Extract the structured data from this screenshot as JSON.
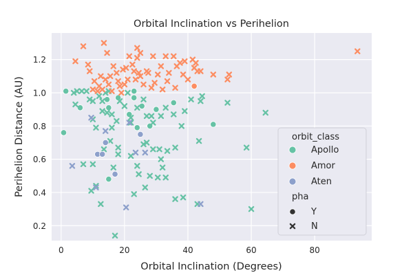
{
  "chart_data": {
    "type": "scatter",
    "title": "Orbital Inclination vs Perihelion",
    "xlabel": "Orbital Inclination (Degrees)",
    "ylabel": "Perihelion Distance (AU)",
    "xlim": [
      -3,
      98
    ],
    "ylim": [
      0.11,
      1.36
    ],
    "xticks": [
      0,
      20,
      40,
      60,
      80
    ],
    "yticks": [
      0.2,
      0.4,
      0.6,
      0.8,
      1.0,
      1.2
    ],
    "grid": true,
    "legend": {
      "placement": "lower-right",
      "hue_title": "orbit_class",
      "hue_entries": [
        "Apollo",
        "Amor",
        "Aten"
      ],
      "style_title": "pha",
      "style_entries": [
        "Y",
        "N"
      ]
    },
    "colors": {
      "Apollo": "#66c2a5",
      "Amor": "#fc8d62",
      "Aten": "#8da0cb",
      "background": "#eaeaf2",
      "grid": "#ffffff"
    },
    "marker_shapes": {
      "Y": "circle",
      "N": "x"
    },
    "series": [
      {
        "name": "Apollo",
        "points": [
          {
            "x": 1.5,
            "y": 1.01,
            "pha": "Y"
          },
          {
            "x": 0.8,
            "y": 0.76,
            "pha": "Y"
          },
          {
            "x": 6,
            "y": 0.91,
            "pha": "Y"
          },
          {
            "x": 14.5,
            "y": 0.96,
            "pha": "Y"
          },
          {
            "x": 15,
            "y": 0.91,
            "pha": "Y"
          },
          {
            "x": 15,
            "y": 0.48,
            "pha": "Y"
          },
          {
            "x": 18,
            "y": 0.97,
            "pha": "Y"
          },
          {
            "x": 21.5,
            "y": 0.87,
            "pha": "Y"
          },
          {
            "x": 23,
            "y": 1.01,
            "pha": "Y"
          },
          {
            "x": 23,
            "y": 0.97,
            "pha": "Y"
          },
          {
            "x": 24,
            "y": 0.79,
            "pha": "Y"
          },
          {
            "x": 25.5,
            "y": 0.92,
            "pha": "Y"
          },
          {
            "x": 28,
            "y": 0.8,
            "pha": "Y"
          },
          {
            "x": 30,
            "y": 0.9,
            "pha": "Y"
          },
          {
            "x": 35.5,
            "y": 0.94,
            "pha": "Y"
          },
          {
            "x": 48,
            "y": 0.81,
            "pha": "Y"
          },
          {
            "x": 4,
            "y": 1.0,
            "pha": "N"
          },
          {
            "x": 5,
            "y": 1.01,
            "pha": "N"
          },
          {
            "x": 4.5,
            "y": 0.93,
            "pha": "N"
          },
          {
            "x": 6.5,
            "y": 1.01,
            "pha": "N"
          },
          {
            "x": 8,
            "y": 1.01,
            "pha": "N"
          },
          {
            "x": 9,
            "y": 0.96,
            "pha": "N"
          },
          {
            "x": 10,
            "y": 0.95,
            "pha": "N"
          },
          {
            "x": 10,
            "y": 0.84,
            "pha": "N"
          },
          {
            "x": 11,
            "y": 0.79,
            "pha": "N"
          },
          {
            "x": 12,
            "y": 0.98,
            "pha": "N"
          },
          {
            "x": 13,
            "y": 0.95,
            "pha": "N"
          },
          {
            "x": 13,
            "y": 0.89,
            "pha": "N"
          },
          {
            "x": 14,
            "y": 1.0,
            "pha": "N"
          },
          {
            "x": 15,
            "y": 1.01,
            "pha": "N"
          },
          {
            "x": 14.5,
            "y": 0.88,
            "pha": "N"
          },
          {
            "x": 16,
            "y": 0.87,
            "pha": "N"
          },
          {
            "x": 16,
            "y": 0.79,
            "pha": "N"
          },
          {
            "x": 17.5,
            "y": 0.83,
            "pha": "N"
          },
          {
            "x": 18.5,
            "y": 0.95,
            "pha": "N"
          },
          {
            "x": 20,
            "y": 0.92,
            "pha": "N"
          },
          {
            "x": 21,
            "y": 1.0,
            "pha": "N"
          },
          {
            "x": 22,
            "y": 0.85,
            "pha": "N"
          },
          {
            "x": 22,
            "y": 0.82,
            "pha": "N"
          },
          {
            "x": 24,
            "y": 0.91,
            "pha": "N"
          },
          {
            "x": 26,
            "y": 0.96,
            "pha": "N"
          },
          {
            "x": 27,
            "y": 0.86,
            "pha": "N"
          },
          {
            "x": 28.5,
            "y": 0.86,
            "pha": "N"
          },
          {
            "x": 29,
            "y": 0.82,
            "pha": "N"
          },
          {
            "x": 31.5,
            "y": 0.86,
            "pha": "N"
          },
          {
            "x": 33,
            "y": 0.91,
            "pha": "N"
          },
          {
            "x": 35.5,
            "y": 0.87,
            "pha": "N"
          },
          {
            "x": 38,
            "y": 0.8,
            "pha": "N"
          },
          {
            "x": 39,
            "y": 0.89,
            "pha": "N"
          },
          {
            "x": 41,
            "y": 0.96,
            "pha": "N"
          },
          {
            "x": 44,
            "y": 0.95,
            "pha": "N"
          },
          {
            "x": 44.5,
            "y": 0.98,
            "pha": "N"
          },
          {
            "x": 52.5,
            "y": 0.94,
            "pha": "N"
          },
          {
            "x": 64.5,
            "y": 0.88,
            "pha": "N"
          },
          {
            "x": 43.5,
            "y": 0.71,
            "pha": "N"
          },
          {
            "x": 7,
            "y": 0.57,
            "pha": "N"
          },
          {
            "x": 10,
            "y": 0.57,
            "pha": "N"
          },
          {
            "x": 9.5,
            "y": 0.41,
            "pha": "N"
          },
          {
            "x": 11,
            "y": 0.44,
            "pha": "N"
          },
          {
            "x": 12.5,
            "y": 0.33,
            "pha": "N"
          },
          {
            "x": 13.5,
            "y": 0.66,
            "pha": "N"
          },
          {
            "x": 15.5,
            "y": 0.71,
            "pha": "N"
          },
          {
            "x": 16.5,
            "y": 0.55,
            "pha": "N"
          },
          {
            "x": 17,
            "y": 0.14,
            "pha": "N"
          },
          {
            "x": 18,
            "y": 0.67,
            "pha": "N"
          },
          {
            "x": 18,
            "y": 0.63,
            "pha": "N"
          },
          {
            "x": 22,
            "y": 0.62,
            "pha": "N"
          },
          {
            "x": 23,
            "y": 0.39,
            "pha": "N"
          },
          {
            "x": 24,
            "y": 0.56,
            "pha": "N"
          },
          {
            "x": 24.5,
            "y": 0.51,
            "pha": "N"
          },
          {
            "x": 26,
            "y": 0.69,
            "pha": "N"
          },
          {
            "x": 27,
            "y": 0.7,
            "pha": "N"
          },
          {
            "x": 26.5,
            "y": 0.43,
            "pha": "N"
          },
          {
            "x": 28,
            "y": 0.5,
            "pha": "N"
          },
          {
            "x": 29,
            "y": 0.66,
            "pha": "N"
          },
          {
            "x": 30.5,
            "y": 0.49,
            "pha": "N"
          },
          {
            "x": 31,
            "y": 0.66,
            "pha": "N"
          },
          {
            "x": 31.5,
            "y": 0.6,
            "pha": "N"
          },
          {
            "x": 32,
            "y": 0.55,
            "pha": "N"
          },
          {
            "x": 33,
            "y": 0.49,
            "pha": "N"
          },
          {
            "x": 33.5,
            "y": 0.65,
            "pha": "N"
          },
          {
            "x": 36,
            "y": 0.67,
            "pha": "N"
          },
          {
            "x": 36,
            "y": 0.36,
            "pha": "N"
          },
          {
            "x": 38.5,
            "y": 0.37,
            "pha": "N"
          },
          {
            "x": 43,
            "y": 0.33,
            "pha": "N"
          },
          {
            "x": 58.5,
            "y": 0.67,
            "pha": "N"
          },
          {
            "x": 60,
            "y": 0.3,
            "pha": "N"
          }
        ]
      },
      {
        "name": "Amor",
        "points": [
          {
            "x": 42,
            "y": 1.04,
            "pha": "Y"
          },
          {
            "x": 4.5,
            "y": 1.19,
            "pha": "N"
          },
          {
            "x": 7,
            "y": 1.28,
            "pha": "N"
          },
          {
            "x": 8.5,
            "y": 1.17,
            "pha": "N"
          },
          {
            "x": 9,
            "y": 1.13,
            "pha": "N"
          },
          {
            "x": 10,
            "y": 1.02,
            "pha": "N"
          },
          {
            "x": 10.5,
            "y": 1.07,
            "pha": "N"
          },
          {
            "x": 11.5,
            "y": 1.01,
            "pha": "N"
          },
          {
            "x": 12,
            "y": 1.04,
            "pha": "N"
          },
          {
            "x": 12.5,
            "y": 1.1,
            "pha": "N"
          },
          {
            "x": 13,
            "y": 1.02,
            "pha": "N"
          },
          {
            "x": 13.5,
            "y": 1.3,
            "pha": "N"
          },
          {
            "x": 14,
            "y": 1.08,
            "pha": "N"
          },
          {
            "x": 14.5,
            "y": 1.24,
            "pha": "N"
          },
          {
            "x": 15,
            "y": 1.05,
            "pha": "N"
          },
          {
            "x": 15.5,
            "y": 1.1,
            "pha": "N"
          },
          {
            "x": 16,
            "y": 1.01,
            "pha": "N"
          },
          {
            "x": 16.5,
            "y": 1.16,
            "pha": "N"
          },
          {
            "x": 17.5,
            "y": 1.12,
            "pha": "N"
          },
          {
            "x": 18,
            "y": 1.07,
            "pha": "N"
          },
          {
            "x": 18.5,
            "y": 1.04,
            "pha": "N"
          },
          {
            "x": 19,
            "y": 1.0,
            "pha": "N"
          },
          {
            "x": 19.5,
            "y": 1.14,
            "pha": "N"
          },
          {
            "x": 20,
            "y": 1.05,
            "pha": "N"
          },
          {
            "x": 20.5,
            "y": 1.15,
            "pha": "N"
          },
          {
            "x": 21,
            "y": 1.08,
            "pha": "N"
          },
          {
            "x": 21.5,
            "y": 1.22,
            "pha": "N"
          },
          {
            "x": 22.5,
            "y": 1.17,
            "pha": "N"
          },
          {
            "x": 23,
            "y": 1.13,
            "pha": "N"
          },
          {
            "x": 23.5,
            "y": 1.08,
            "pha": "N"
          },
          {
            "x": 24,
            "y": 1.27,
            "pha": "N"
          },
          {
            "x": 24,
            "y": 1.21,
            "pha": "N"
          },
          {
            "x": 24.5,
            "y": 1.12,
            "pha": "N"
          },
          {
            "x": 25,
            "y": 1.24,
            "pha": "N"
          },
          {
            "x": 25,
            "y": 1.1,
            "pha": "N"
          },
          {
            "x": 26,
            "y": 1.05,
            "pha": "N"
          },
          {
            "x": 27,
            "y": 1.13,
            "pha": "N"
          },
          {
            "x": 27.5,
            "y": 1.12,
            "pha": "N"
          },
          {
            "x": 28.5,
            "y": 1.03,
            "pha": "N"
          },
          {
            "x": 29,
            "y": 1.22,
            "pha": "N"
          },
          {
            "x": 29.5,
            "y": 1.06,
            "pha": "N"
          },
          {
            "x": 30.5,
            "y": 1.11,
            "pha": "N"
          },
          {
            "x": 31.5,
            "y": 1.16,
            "pha": "N"
          },
          {
            "x": 32,
            "y": 1.02,
            "pha": "N"
          },
          {
            "x": 33,
            "y": 1.22,
            "pha": "N"
          },
          {
            "x": 33.5,
            "y": 1.07,
            "pha": "N"
          },
          {
            "x": 34,
            "y": 1.12,
            "pha": "N"
          },
          {
            "x": 35.5,
            "y": 1.22,
            "pha": "N"
          },
          {
            "x": 36,
            "y": 1.03,
            "pha": "N"
          },
          {
            "x": 36.5,
            "y": 1.16,
            "pha": "N"
          },
          {
            "x": 37.5,
            "y": 1.18,
            "pha": "N"
          },
          {
            "x": 38.5,
            "y": 1.11,
            "pha": "N"
          },
          {
            "x": 39,
            "y": 1.19,
            "pha": "N"
          },
          {
            "x": 40,
            "y": 1.08,
            "pha": "N"
          },
          {
            "x": 41.5,
            "y": 1.2,
            "pha": "N"
          },
          {
            "x": 42,
            "y": 1.15,
            "pha": "N"
          },
          {
            "x": 42.5,
            "y": 1.18,
            "pha": "N"
          },
          {
            "x": 43,
            "y": 1.13,
            "pha": "N"
          },
          {
            "x": 44,
            "y": 1.13,
            "pha": "N"
          },
          {
            "x": 48,
            "y": 1.11,
            "pha": "N"
          },
          {
            "x": 52.5,
            "y": 1.08,
            "pha": "N"
          },
          {
            "x": 53,
            "y": 1.11,
            "pha": "N"
          },
          {
            "x": 93.5,
            "y": 1.25,
            "pha": "N"
          }
        ]
      },
      {
        "name": "Aten",
        "points": [
          {
            "x": 11.5,
            "y": 0.63,
            "pha": "Y"
          },
          {
            "x": 13,
            "y": 0.63,
            "pha": "Y"
          },
          {
            "x": 14,
            "y": 0.7,
            "pha": "Y"
          },
          {
            "x": 17,
            "y": 0.51,
            "pha": "Y"
          },
          {
            "x": 25,
            "y": 0.75,
            "pha": "Y"
          },
          {
            "x": 3.5,
            "y": 0.56,
            "pha": "N"
          },
          {
            "x": 9.5,
            "y": 0.85,
            "pha": "N"
          },
          {
            "x": 11,
            "y": 0.43,
            "pha": "N"
          },
          {
            "x": 14,
            "y": 0.77,
            "pha": "N"
          },
          {
            "x": 20.5,
            "y": 0.31,
            "pha": "N"
          },
          {
            "x": 21.5,
            "y": 0.82,
            "pha": "N"
          },
          {
            "x": 23.5,
            "y": 0.64,
            "pha": "N"
          },
          {
            "x": 26.5,
            "y": 0.64,
            "pha": "N"
          },
          {
            "x": 44,
            "y": 0.33,
            "pha": "N"
          }
        ]
      }
    ]
  }
}
